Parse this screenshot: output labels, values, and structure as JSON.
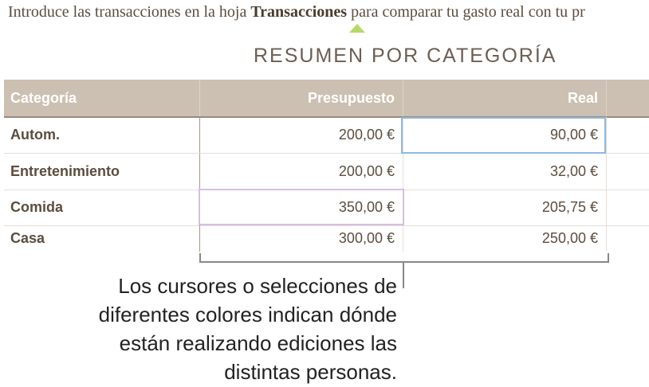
{
  "intro": {
    "before": "Introduce las transacciones en la hoja ",
    "bold": "Transacciones",
    "after": " para comparar tu gasto real con tu pr"
  },
  "title": "RESUMEN POR CATEGORÍA",
  "table": {
    "headers": [
      "Categoría",
      "Presupuesto",
      "Real"
    ],
    "rows": [
      [
        "Autom.",
        "200,00 €",
        "90,00 €"
      ],
      [
        "Entretenimiento",
        "200,00 €",
        "32,00 €"
      ],
      [
        "Comida",
        "350,00 €",
        "205,75 €"
      ],
      [
        "Casa",
        "300,00 €",
        "250,00 €"
      ]
    ]
  },
  "callout": [
    "Los cursores o selecciones de",
    "diferentes colores indican dónde",
    "están realizando ediciones las",
    "distintas personas."
  ],
  "colors": {
    "header": "#ccc0b2",
    "cursor_blue": "#8fb8e0",
    "cursor_purple": "#d6bde6",
    "caret": "#b5d96a"
  }
}
